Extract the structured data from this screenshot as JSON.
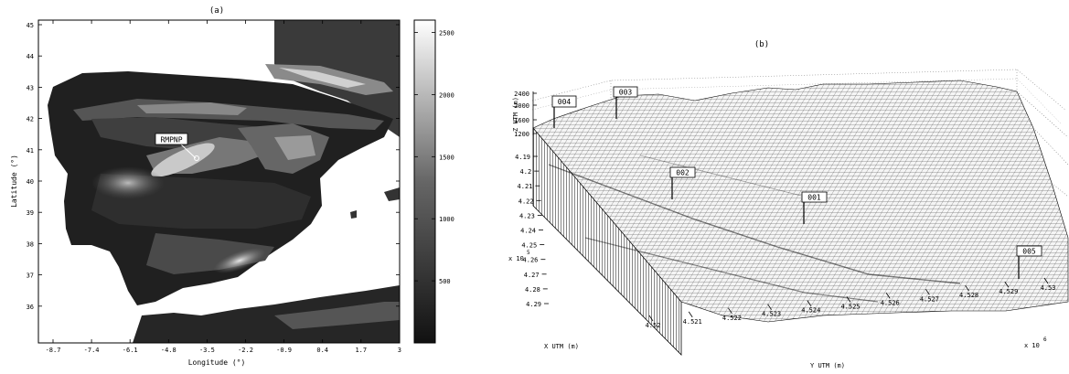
{
  "chart_data": [
    {
      "type": "heatmap",
      "title": "(a)",
      "xlabel": "Longitude (°)",
      "ylabel": "Latitude (°)",
      "x_ticks": [
        "-8.7",
        "-7.4",
        "-6.1",
        "-4.8",
        "-3.5",
        "-2.2",
        "-0.9",
        "0.4",
        "1.7",
        "3"
      ],
      "y_ticks": [
        "45",
        "44",
        "43",
        "42",
        "41",
        "40",
        "39",
        "38",
        "37",
        "36"
      ],
      "xlim": [
        -9.5,
        3
      ],
      "ylim": [
        35,
        45
      ],
      "colorbar": {
        "ticks": [
          "2500",
          "2000",
          "1500",
          "1000",
          "500"
        ],
        "range": [
          0,
          2600
        ]
      },
      "annotation": {
        "label": "RMPNP",
        "lon": -3.6,
        "lat": 40.8
      },
      "colormap": [
        "#111111",
        "#ffffff"
      ]
    },
    {
      "type": "surface",
      "title": "(b)",
      "xlabel": "X UTM (m)",
      "ylabel": "Y UTM (m)",
      "zlabel": "Z UTM (m)",
      "x_ticks": [
        "4.19",
        "4.2",
        "4.21",
        "4.22",
        "4.23",
        "4.24",
        "4.25",
        "4.26",
        "4.27",
        "4.28",
        "4.29"
      ],
      "x_multiplier": "x 10",
      "x_exponent": "5",
      "y_ticks": [
        "4.52",
        "4.521",
        "4.522",
        "4.523",
        "4.524",
        "4.525",
        "4.526",
        "4.527",
        "4.528",
        "4.529",
        "4.53"
      ],
      "y_multiplier": "x 10",
      "y_exponent": "6",
      "z_ticks": [
        "2400",
        "2000",
        "1600",
        "1200"
      ],
      "stations": [
        "001",
        "002",
        "003",
        "004",
        "005"
      ]
    }
  ]
}
